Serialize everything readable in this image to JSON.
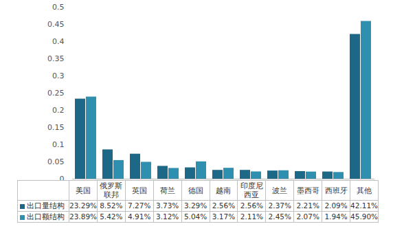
{
  "chart_data": {
    "type": "bar",
    "categories": [
      "美国",
      "俄罗斯联邦",
      "英国",
      "荷兰",
      "德国",
      "越南",
      "印度尼西亚",
      "波兰",
      "墨西哥",
      "西班牙",
      "其他"
    ],
    "series": [
      {
        "name": "出口量结构",
        "color": "#1c6886",
        "values": [
          0.2329,
          0.0852,
          0.0727,
          0.0373,
          0.0329,
          0.0256,
          0.0256,
          0.0237,
          0.0221,
          0.0209,
          0.4211
        ],
        "value_labels": [
          "23.29%",
          "8.52%",
          "7.27%",
          "3.73%",
          "3.29%",
          "2.56%",
          "2.56%",
          "2.37%",
          "2.21%",
          "2.09%",
          "42.11%"
        ]
      },
      {
        "name": "出口额结构",
        "color": "#2f8fae",
        "values": [
          0.2389,
          0.0542,
          0.0491,
          0.0312,
          0.0504,
          0.0317,
          0.0211,
          0.0245,
          0.0207,
          0.0194,
          0.459
        ],
        "value_labels": [
          "23.89%",
          "5.42%",
          "4.91%",
          "3.12%",
          "5.04%",
          "3.17%",
          "2.11%",
          "2.45%",
          "2.07%",
          "1.94%",
          "45.90%"
        ]
      }
    ],
    "ylim": [
      0,
      0.5
    ],
    "yticks": [
      0,
      0.05,
      0.1,
      0.15,
      0.2,
      0.25,
      0.3,
      0.35,
      0.4,
      0.45,
      0.5
    ],
    "grid": false,
    "legend": "bottom"
  }
}
